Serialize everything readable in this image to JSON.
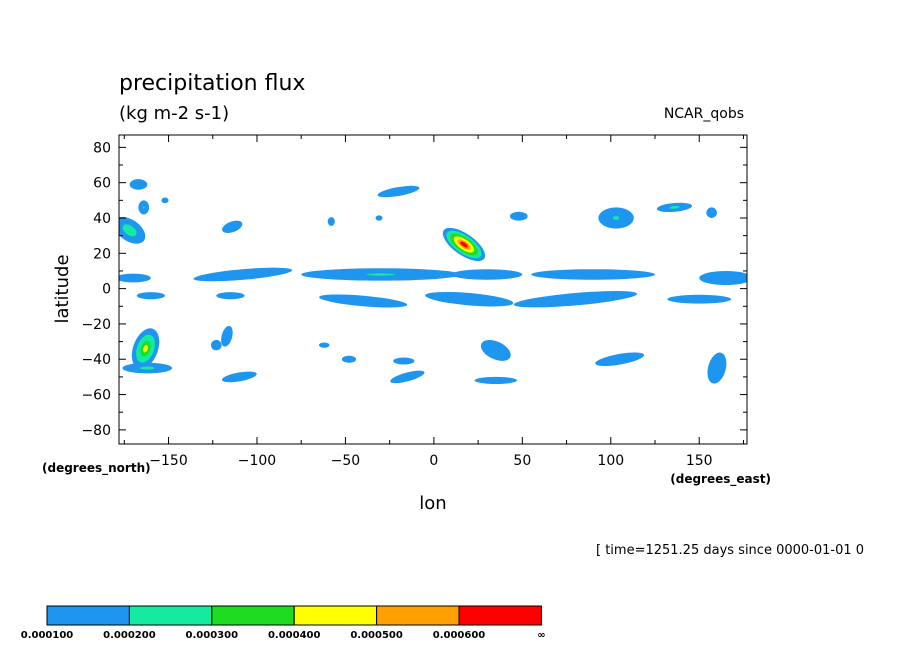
{
  "chart_data": {
    "type": "contour",
    "title": "precipitation flux",
    "units": "(kg m-2 s-1)",
    "dataset": "NCAR_qobs",
    "time_label": "[ time=1251.25 days since 0000-01-01 0",
    "xlabel": "lon",
    "ylabel": "latitude",
    "x_units_label": "(degrees_east)",
    "y_units_label": "(degrees_north)",
    "xlim": [
      -178,
      177
    ],
    "ylim": [
      -88,
      87
    ],
    "x_ticks": [
      -150,
      -100,
      -50,
      0,
      50,
      100,
      150
    ],
    "x_tick_labels": [
      "−150",
      "−100",
      "−50",
      "0",
      "50",
      "100",
      "150"
    ],
    "y_ticks": [
      80,
      60,
      40,
      20,
      0,
      -20,
      -40,
      -60,
      -80
    ],
    "y_tick_labels": [
      "80",
      "60",
      "40",
      "20",
      "0",
      "−20",
      "−40",
      "−60",
      "−80"
    ],
    "levels": [
      0.0001,
      0.0002,
      0.0003,
      0.0004,
      0.0005,
      0.0006
    ],
    "level_labels": [
      "0.000100",
      "0.000200",
      "0.000300",
      "0.000400",
      "0.000500",
      "0.000600",
      "∞"
    ],
    "level_colors": [
      "#1e96f0",
      "#14eaa0",
      "#1edc1e",
      "#ffff00",
      "#ffa000",
      "#ff0000"
    ],
    "features": [
      {
        "lon": -172,
        "lat": 33,
        "rx": 6,
        "ry": 10,
        "rot": -55,
        "peak": 0.00028
      },
      {
        "lon": -164,
        "lat": 46,
        "rx": 3,
        "ry": 4,
        "rot": 0,
        "peak": 0.00022
      },
      {
        "lon": -167,
        "lat": 59,
        "rx": 5,
        "ry": 3,
        "rot": 0,
        "peak": 0.00013
      },
      {
        "lon": -152,
        "lat": 50,
        "rx": 2,
        "ry": 1.6,
        "rot": 0,
        "peak": 0.00012
      },
      {
        "lon": -114,
        "lat": 35,
        "rx": 6,
        "ry": 3,
        "rot": -20,
        "peak": 0.00016
      },
      {
        "lon": -58,
        "lat": 38,
        "rx": 2,
        "ry": 2.5,
        "rot": 0,
        "peak": 0.00012
      },
      {
        "lon": -31,
        "lat": 40,
        "rx": 2,
        "ry": 1.5,
        "rot": 0,
        "peak": 0.00011
      },
      {
        "lon": -20,
        "lat": 55,
        "rx": 12,
        "ry": 2.5,
        "rot": -10,
        "peak": 0.00012
      },
      {
        "lon": 17,
        "lat": 25,
        "rx": 6,
        "ry": 14,
        "rot": -55,
        "peak": 0.00068
      },
      {
        "lon": 48,
        "lat": 41,
        "rx": 5,
        "ry": 2.5,
        "rot": 0,
        "peak": 0.00012
      },
      {
        "lon": 103,
        "lat": 40,
        "rx": 10,
        "ry": 6,
        "rot": 0,
        "peak": 0.00022
      },
      {
        "lon": 136,
        "lat": 46,
        "rx": 10,
        "ry": 2.5,
        "rot": -5,
        "peak": 0.00024
      },
      {
        "lon": 157,
        "lat": 43,
        "rx": 3,
        "ry": 3,
        "rot": 0,
        "peak": 0.00015
      },
      {
        "lon": -170,
        "lat": 6,
        "rx": 10,
        "ry": 2.5,
        "rot": 0,
        "peak": 0.00016
      },
      {
        "lon": -108,
        "lat": 8,
        "rx": 28,
        "ry": 3,
        "rot": -5,
        "peak": 0.0002
      },
      {
        "lon": -30,
        "lat": 8,
        "rx": 45,
        "ry": 3.5,
        "rot": 0,
        "peak": 0.00022
      },
      {
        "lon": 30,
        "lat": 8,
        "rx": 20,
        "ry": 3,
        "rot": 0,
        "peak": 0.00013
      },
      {
        "lon": 90,
        "lat": 8,
        "rx": 35,
        "ry": 3,
        "rot": 0,
        "peak": 0.00018
      },
      {
        "lon": 165,
        "lat": 6,
        "rx": 15,
        "ry": 4,
        "rot": 0,
        "peak": 0.00018
      },
      {
        "lon": -160,
        "lat": -4,
        "rx": 8,
        "ry": 2,
        "rot": 0,
        "peak": 0.00014
      },
      {
        "lon": -115,
        "lat": -4,
        "rx": 8,
        "ry": 2,
        "rot": 0,
        "peak": 0.00011
      },
      {
        "lon": -40,
        "lat": -7,
        "rx": 25,
        "ry": 3,
        "rot": 5,
        "peak": 0.00014
      },
      {
        "lon": 20,
        "lat": -6,
        "rx": 25,
        "ry": 3.5,
        "rot": 5,
        "peak": 0.0002
      },
      {
        "lon": 80,
        "lat": -6,
        "rx": 35,
        "ry": 3.5,
        "rot": -5,
        "peak": 0.00018
      },
      {
        "lon": 150,
        "lat": -6,
        "rx": 18,
        "ry": 2.5,
        "rot": 0,
        "peak": 0.00013
      },
      {
        "lon": -163,
        "lat": -34,
        "rx": 7,
        "ry": 12,
        "rot": 20,
        "peak": 0.00042
      },
      {
        "lon": -162,
        "lat": -45,
        "rx": 14,
        "ry": 3,
        "rot": 0,
        "peak": 0.00024
      },
      {
        "lon": -117,
        "lat": -27,
        "rx": 3,
        "ry": 6,
        "rot": 15,
        "peak": 0.00016
      },
      {
        "lon": -123,
        "lat": -32,
        "rx": 3,
        "ry": 3,
        "rot": 0,
        "peak": 0.00013
      },
      {
        "lon": -110,
        "lat": -50,
        "rx": 10,
        "ry": 2.5,
        "rot": -10,
        "peak": 0.00013
      },
      {
        "lon": -48,
        "lat": -40,
        "rx": 4,
        "ry": 2,
        "rot": 0,
        "peak": 0.00012
      },
      {
        "lon": -62,
        "lat": -32,
        "rx": 3,
        "ry": 1.5,
        "rot": 0,
        "peak": 0.00011
      },
      {
        "lon": -17,
        "lat": -41,
        "rx": 6,
        "ry": 2,
        "rot": 0,
        "peak": 0.00012
      },
      {
        "lon": -15,
        "lat": -50,
        "rx": 10,
        "ry": 2.5,
        "rot": -15,
        "peak": 0.00013
      },
      {
        "lon": 35,
        "lat": -35,
        "rx": 9,
        "ry": 5,
        "rot": 25,
        "peak": 0.00016
      },
      {
        "lon": 35,
        "lat": -52,
        "rx": 12,
        "ry": 2,
        "rot": 0,
        "peak": 0.00011
      },
      {
        "lon": 105,
        "lat": -40,
        "rx": 14,
        "ry": 3,
        "rot": -10,
        "peak": 0.00014
      },
      {
        "lon": 160,
        "lat": -45,
        "rx": 5,
        "ry": 9,
        "rot": 15,
        "peak": 0.00018
      }
    ]
  }
}
